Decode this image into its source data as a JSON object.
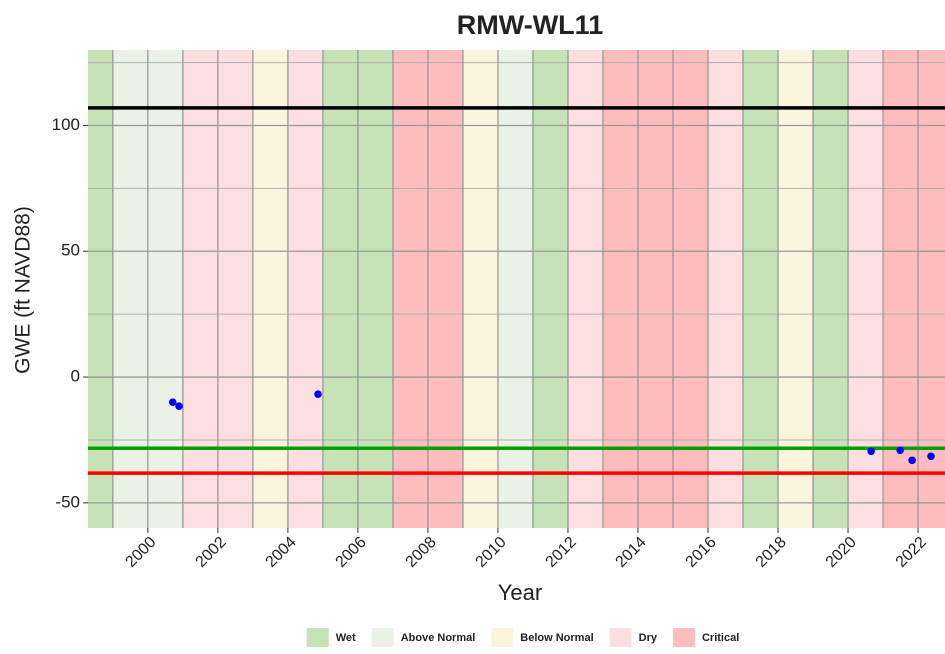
{
  "chart_data": {
    "type": "scatter",
    "title": "RMW-WL11",
    "x_label": "Year",
    "y_label": "GWE (ft NAVD88)",
    "xlim": [
      1998.29,
      2022.77
    ],
    "ylim": [
      -60,
      130
    ],
    "xticks": [
      2000,
      2002,
      2004,
      2006,
      2008,
      2010,
      2012,
      2014,
      2016,
      2018,
      2020,
      2022
    ],
    "yticks": [
      -50,
      0,
      50,
      100
    ],
    "y_minor_grid": [
      -25,
      25,
      75,
      125
    ],
    "grid": true,
    "x": [
      2000.71,
      2000.89,
      2004.86,
      2020.66,
      2021.49,
      2021.83,
      2022.37
    ],
    "values": [
      -10,
      -11.6,
      -6.8,
      -29.5,
      -29.1,
      -33.1,
      -31.5
    ],
    "color": "#0000ff",
    "hlines": [
      {
        "value": 107,
        "color": "#000000"
      },
      {
        "value": -28.3,
        "color": "#00a000"
      },
      {
        "value": -38.2,
        "color": "#ff0000"
      }
    ],
    "water_years": {
      "years": [
        1998,
        1999,
        2000,
        2001,
        2002,
        2003,
        2004,
        2005,
        2006,
        2007,
        2008,
        2009,
        2010,
        2011,
        2012,
        2013,
        2014,
        2015,
        2016,
        2017,
        2018,
        2019,
        2020,
        2021,
        2022
      ],
      "types": [
        "Wet",
        "Above Normal",
        "Above Normal",
        "Dry",
        "Dry",
        "Below Normal",
        "Dry",
        "Wet",
        "Wet",
        "Critical",
        "Critical",
        "Below Normal",
        "Above Normal",
        "Wet",
        "Dry",
        "Critical",
        "Critical",
        "Critical",
        "Dry",
        "Wet",
        "Below Normal",
        "Wet",
        "Dry",
        "Critical",
        "Critical"
      ]
    },
    "legend": [
      {
        "name": "Wet",
        "color": "#c5e3b7"
      },
      {
        "name": "Above Normal",
        "color": "#eaf2e5"
      },
      {
        "name": "Below Normal",
        "color": "#fcf5de"
      },
      {
        "name": "Dry",
        "color": "#fddfe0"
      },
      {
        "name": "Critical",
        "color": "#fdbcbe"
      }
    ]
  }
}
